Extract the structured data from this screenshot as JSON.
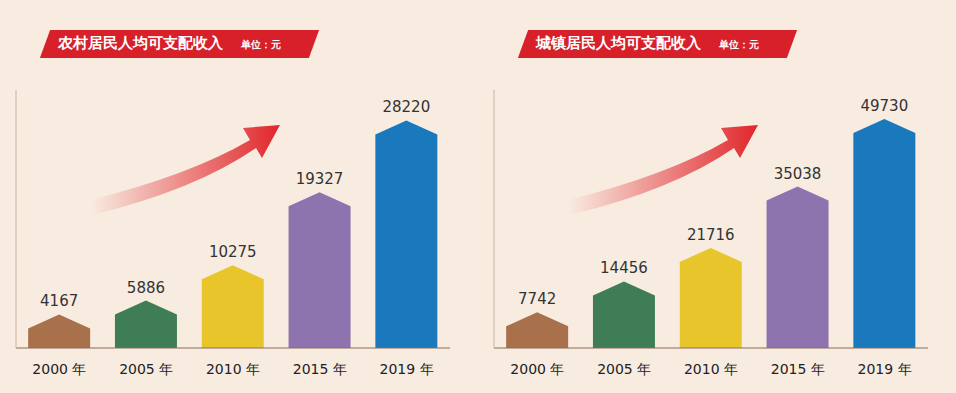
{
  "chart_data": [
    {
      "type": "bar",
      "title": "农村居民人均可支配收入",
      "subtitle": "单位：元",
      "categories": [
        "2000 年",
        "2005 年",
        "2010 年",
        "2015 年",
        "2019 年"
      ],
      "values": [
        4167,
        5886,
        10275,
        19327,
        28220
      ],
      "colors": [
        "#a8714c",
        "#3e7d56",
        "#e9c52c",
        "#8d74ae",
        "#1a79bd"
      ],
      "ylim": [
        0,
        32000
      ],
      "data_labels": true,
      "tick_labels": "x"
    },
    {
      "type": "bar",
      "title": "城镇居民人均可支配收入",
      "subtitle": "单位：元",
      "categories": [
        "2000 年",
        "2005 年",
        "2010 年",
        "2015 年",
        "2019 年"
      ],
      "values": [
        7742,
        14456,
        21716,
        35038,
        49730
      ],
      "colors": [
        "#a8714c",
        "#3e7d56",
        "#e9c52c",
        "#8d74ae",
        "#1a79bd"
      ],
      "ylim": [
        0,
        56000
      ],
      "data_labels": true,
      "tick_labels": "x"
    }
  ]
}
